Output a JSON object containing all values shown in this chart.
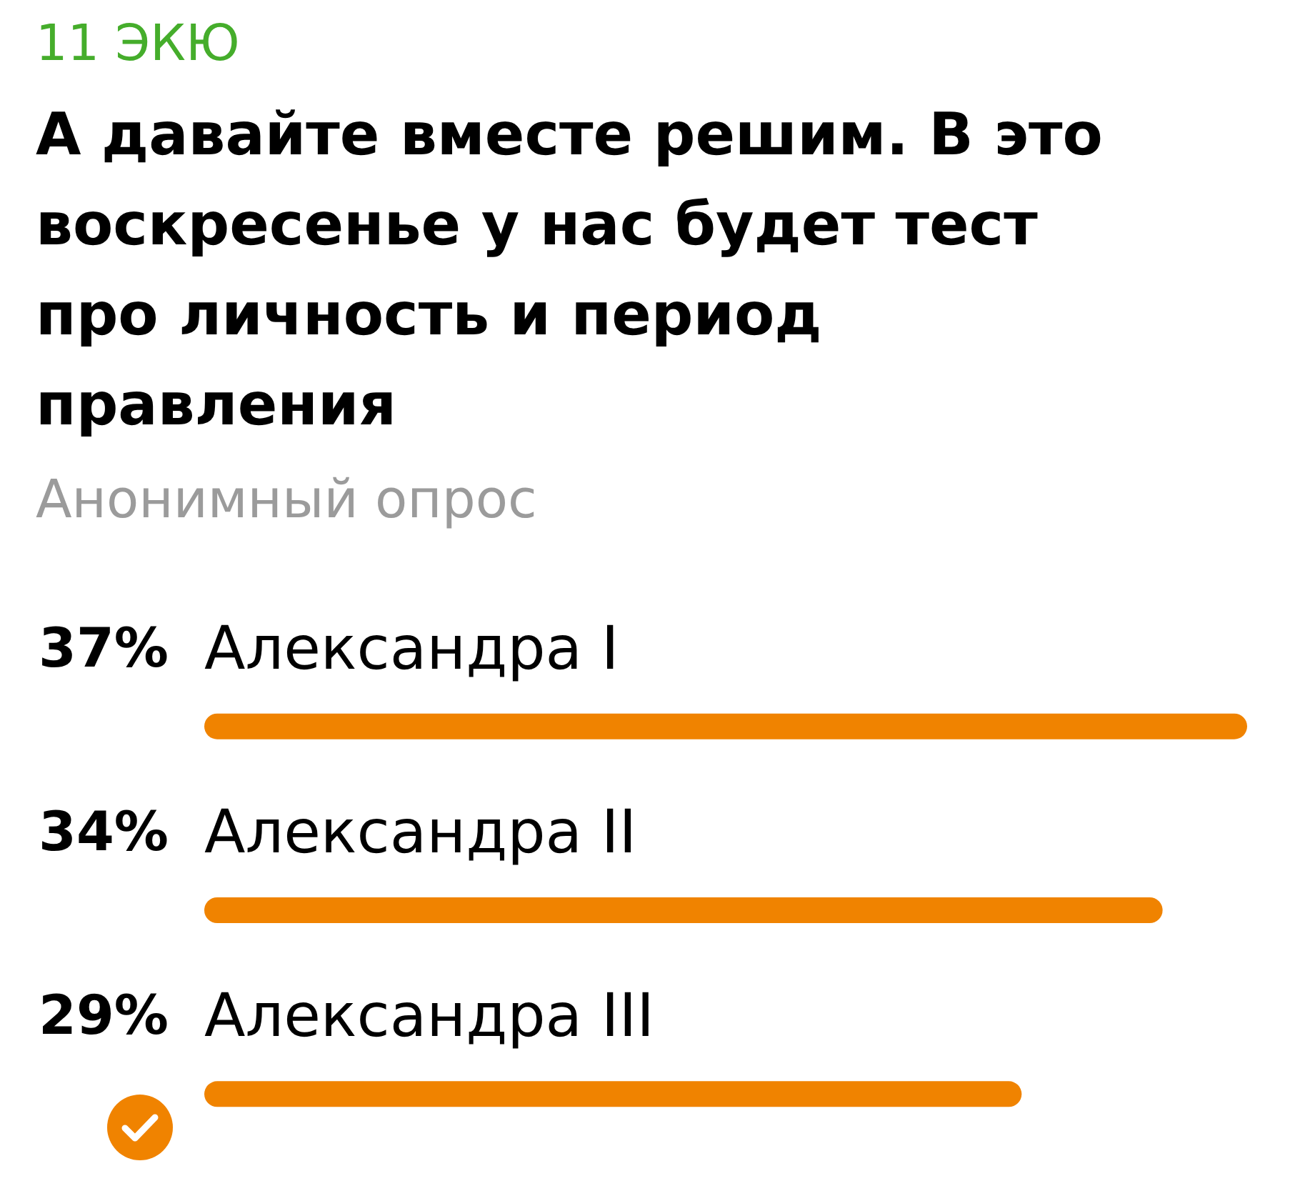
{
  "chart_data": {
    "type": "bar",
    "orientation": "horizontal",
    "annotations": [
      "11 ЭКЮ"
    ],
    "title": "А давайте вместе решим. В это воскресенье у нас будет тест про личность и период правления",
    "subtitle": "Анонимный опрос",
    "categories": [
      "Александра I",
      "Александра II",
      "Александра III"
    ],
    "values": [
      37,
      34,
      29
    ],
    "value_labels": [
      "37%",
      "34%",
      "29%"
    ],
    "color": "#f08300",
    "tick_labels": "y"
  }
}
